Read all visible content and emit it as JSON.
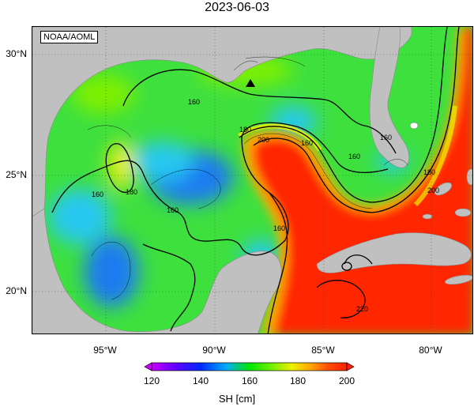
{
  "title": "2023-06-03",
  "credit": "NOAA/AOML",
  "lat_labels": [
    "30°N",
    "25°N",
    "20°N"
  ],
  "lon_labels": [
    "95°W",
    "90°W",
    "85°W",
    "80°W"
  ],
  "contour_labels": [
    "160",
    "160",
    "160",
    "160",
    "160",
    "160",
    "180",
    "180",
    "180",
    "200",
    "200",
    "160",
    "220"
  ],
  "colorbar": {
    "ticks": [
      "120",
      "140",
      "160",
      "180",
      "200"
    ],
    "label": "SH [cm]",
    "colors": [
      "#c800ff",
      "#6400ff",
      "#0028ff",
      "#00aaff",
      "#00e6c8",
      "#00e600",
      "#78f000",
      "#f0f000",
      "#ffa000",
      "#ff5000",
      "#ff1e00"
    ]
  },
  "colors": {
    "land": "#c0c0c0",
    "sea_green": "#3ee03e",
    "sea_cyan": "#28c8f0",
    "sea_blue": "#1e7bf0",
    "sea_yellow": "#f0f000",
    "sea_orange": "#ffaa00",
    "sea_red": "#ff2800"
  }
}
